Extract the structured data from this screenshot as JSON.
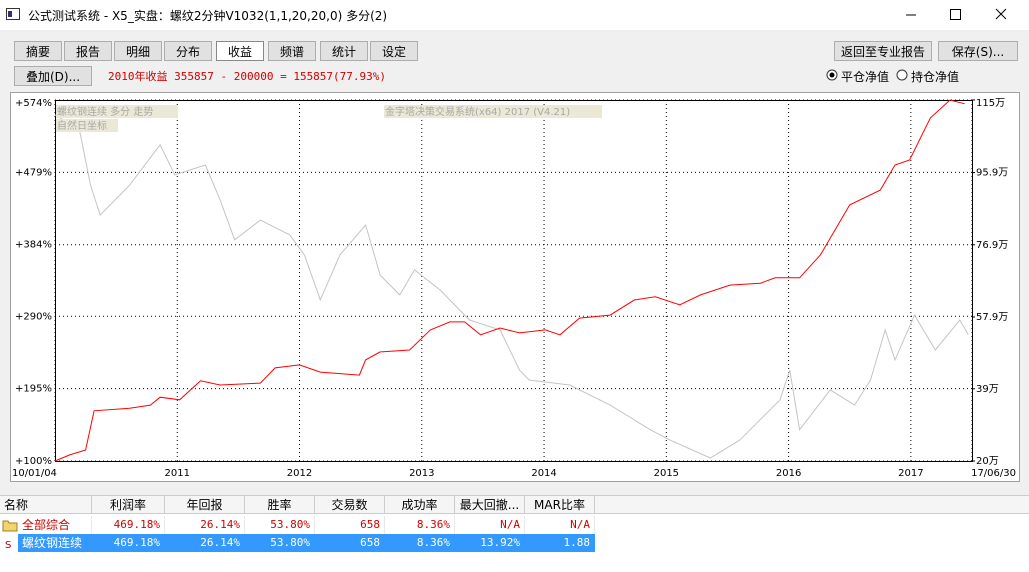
{
  "window": {
    "title": "公式测试系统 - X5_实盘：螺纹2分钟V1032(1,1,20,20,0) 多分(2)"
  },
  "toolbar": {
    "tabs": [
      "摘要",
      "报告",
      "明细",
      "分布",
      "收益",
      "频谱",
      "统计",
      "设定"
    ],
    "selected_tab": 4,
    "overlay_button": "叠加(D)...",
    "summary": "2010年收益 355857 - 200000 = 155857(77.93%)",
    "back_button": "返回至专业报告",
    "save_button": "保存(S)...",
    "radios": [
      "平仓净值",
      "持仓净值"
    ],
    "selected_radio": 0
  },
  "chart_data": {
    "type": "line",
    "annotations": [
      "自然日坐标",
      "金字塔决策交易系统(x64) 2017 (V4.21)"
    ],
    "xlim": [
      2010.0,
      2017.5
    ],
    "xticks": [
      {
        "value": 2010.0,
        "label": "10/01/04"
      },
      2011,
      2012,
      2013,
      2014,
      2015,
      2016,
      2017,
      {
        "value": 2017.5,
        "label": "17/06/30"
      }
    ],
    "ylim": [
      100,
      574
    ],
    "yticks": [
      {
        "value": 100,
        "label": "+100%"
      },
      {
        "value": 195,
        "label": "+195%"
      },
      {
        "value": 290,
        "label": "+290%"
      },
      {
        "value": 384,
        "label": "+384%"
      },
      {
        "value": 479,
        "label": "+479%"
      },
      {
        "value": 574,
        "label": "+574%"
      }
    ],
    "y2lim": [
      20,
      115
    ],
    "y2ticks": [
      {
        "value": 20,
        "label": "20万"
      },
      {
        "value": 39,
        "label": "39万"
      },
      {
        "value": 57.9,
        "label": "57.9万"
      },
      {
        "value": 76.9,
        "label": "76.9万"
      },
      {
        "value": 95.9,
        "label": "95.9万"
      },
      {
        "value": 115,
        "label": "115万"
      }
    ],
    "grid": true,
    "series": [
      {
        "color": "#ff0000",
        "axis": "y2",
        "x": [
          2010.0,
          2010.12,
          2010.25,
          2010.32,
          2010.61,
          2010.78,
          2010.86,
          2011.02,
          2011.19,
          2011.35,
          2011.68,
          2011.8,
          2012.0,
          2012.17,
          2012.49,
          2012.54,
          2012.66,
          2012.9,
          2013.07,
          2013.23,
          2013.35,
          2013.48,
          2013.64,
          2013.8,
          2014.01,
          2014.13,
          2014.29,
          2014.54,
          2014.74,
          2014.91,
          2015.11,
          2015.28,
          2015.52,
          2015.77,
          2015.89,
          2016.09,
          2016.26,
          2016.5,
          2016.75,
          2016.87,
          2016.99,
          2017.16,
          2017.32,
          2017.44
        ],
        "values": [
          20,
          21.6,
          22.9,
          33.2,
          33.9,
          34.7,
          36.8,
          36.1,
          41.1,
          40,
          40.5,
          44.5,
          45.3,
          43.4,
          42.6,
          46.6,
          48.7,
          49.2,
          54.5,
          56.6,
          56.6,
          53.2,
          55,
          53.7,
          54.5,
          53.2,
          57.6,
          58.4,
          62.4,
          63.2,
          61.1,
          63.7,
          66.3,
          66.8,
          68.2,
          68.2,
          74.2,
          87.4,
          91.3,
          97.9,
          99.2,
          110.3,
          115,
          114
        ]
      },
      {
        "name": "螺纹钢连续 多分 走势",
        "color": "#c4c4c4",
        "axis": "y2",
        "x": [
          2010.0,
          2010.2,
          2010.29,
          2010.37,
          2010.61,
          2010.86,
          2010.98,
          2011.23,
          2011.35,
          2011.47,
          2011.68,
          2011.92,
          2012.04,
          2012.17,
          2012.33,
          2012.54,
          2012.66,
          2012.82,
          2012.94,
          2013.15,
          2013.39,
          2013.64,
          2013.8,
          2013.88,
          2014.21,
          2014.54,
          2014.87,
          2015.03,
          2015.36,
          2015.6,
          2015.93,
          2016.01,
          2016.09,
          2016.34,
          2016.54,
          2016.67,
          2016.79,
          2016.87,
          2017.03,
          2017.2,
          2017.4,
          2017.47
        ],
        "values": [
          111.1,
          107.1,
          92.6,
          84.7,
          92.6,
          103.2,
          95.3,
          97.9,
          88.7,
          78.2,
          83.4,
          79.5,
          74.2,
          62.4,
          74.2,
          82.1,
          68.9,
          63.7,
          70.3,
          65,
          57.1,
          54.5,
          43.9,
          41.3,
          40,
          34.7,
          28.2,
          25.5,
          20.8,
          25.5,
          36.1,
          43.9,
          28.2,
          38.7,
          34.7,
          41.3,
          54.5,
          46.6,
          58.4,
          49.2,
          57.1,
          53.2
        ]
      }
    ]
  },
  "table": {
    "headers": [
      "名称",
      "利润率",
      "年回报",
      "胜率",
      "交易数",
      "成功率",
      "最大回撤...",
      "MAR比率"
    ],
    "rows": [
      [
        "全部综合",
        "469.18%",
        "26.14%",
        "53.80%",
        "658",
        "8.36%",
        "N/A",
        "N/A"
      ],
      [
        "螺纹钢连续",
        "469.18%",
        "26.14%",
        "53.80%",
        "658",
        "8.36%",
        "13.92%",
        "1.88"
      ]
    ],
    "selected_row": 1
  }
}
